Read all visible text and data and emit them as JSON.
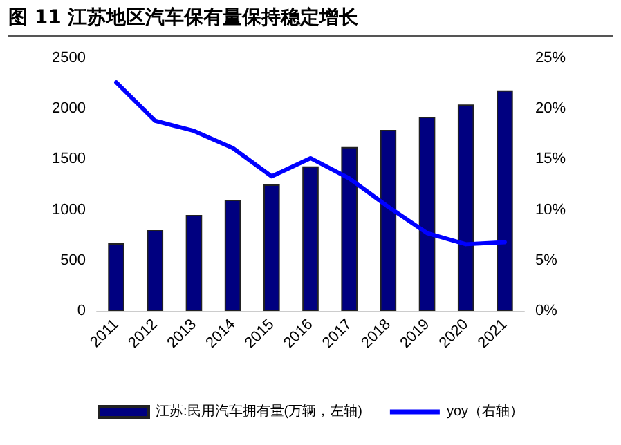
{
  "chart_data": {
    "type": "bar",
    "title": "图 11 江苏地区汽车保有量保持稳定增长",
    "categories": [
      "2011",
      "2012",
      "2013",
      "2014",
      "2015",
      "2016",
      "2017",
      "2018",
      "2019",
      "2020",
      "2021"
    ],
    "series": [
      {
        "name": "江苏:民用汽车拥有量(万辆，左轴)",
        "color": "#000080",
        "values": [
          670,
          800,
          950,
          1100,
          1250,
          1430,
          1620,
          1790,
          1920,
          2040,
          2180
        ]
      },
      {
        "name": "yoy（右轴）",
        "type": "line",
        "axis": "y2",
        "color": "#0000ff",
        "values": [
          22.6,
          18.8,
          17.8,
          16.1,
          13.3,
          15.1,
          13.1,
          10.3,
          7.7,
          6.6,
          6.8
        ]
      }
    ],
    "ylim": [
      0,
      2500
    ],
    "yticks": [
      0,
      500,
      1000,
      1500,
      2000,
      2500
    ],
    "y2lim": [
      0,
      25
    ],
    "y2ticks": [
      {
        "value": 0,
        "label": "0%"
      },
      {
        "value": 5,
        "label": "5%"
      },
      {
        "value": 10,
        "label": "10%"
      },
      {
        "value": 15,
        "label": "15%"
      },
      {
        "value": 20,
        "label": "20%"
      },
      {
        "value": 25,
        "label": "25%"
      }
    ],
    "grid": false,
    "legend": "bottom",
    "marker": "none",
    "line_style": "solid"
  }
}
